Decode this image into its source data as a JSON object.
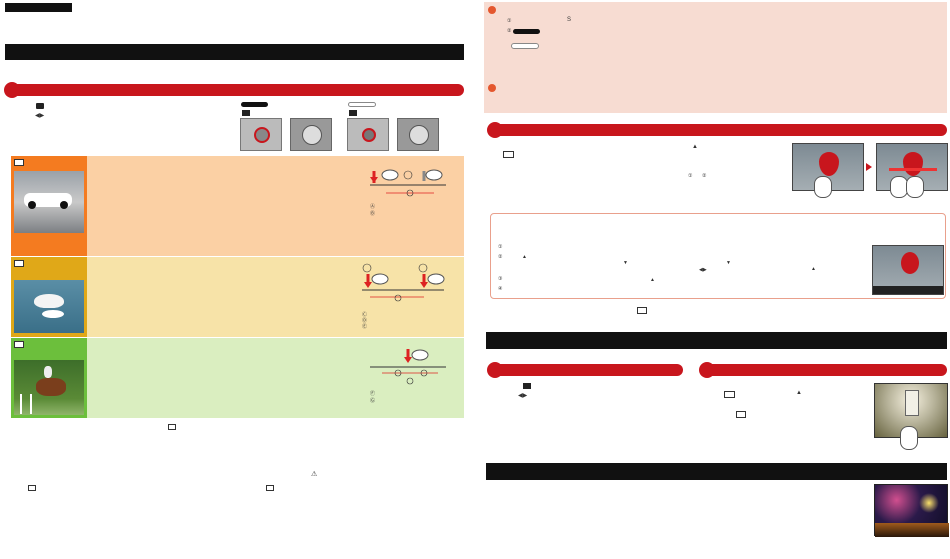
{
  "glyphs": {
    "arrow_lr": "◀▶",
    "arrow_up": "▲",
    "arrow_down": "▼",
    "warning": "⚠",
    "letter_s": "S",
    "circle_1": "①",
    "circle_2": "②",
    "circle_3": "③",
    "circle_4": "④",
    "circle_a": "Ⓐ",
    "circle_b": "Ⓑ",
    "circle_c": "Ⓒ",
    "circle_d": "Ⓓ",
    "circle_e": "Ⓔ",
    "circle_f": "Ⓕ",
    "circle_g": "Ⓖ"
  },
  "colors": {
    "accent_red": "#c8161d",
    "band_orange": "#fbd0a4",
    "band_yellow": "#f7e3a8",
    "band_green": "#daeec0",
    "note_pink": "#f7dcd2"
  },
  "icons": [
    "warning-icon",
    "scene-icon",
    "camera-body-icon",
    "dial-icon",
    "touch-hand-icon",
    "bird-thumb",
    "car-thumb",
    "horse-thumb",
    "balloon-thumb",
    "lantern-thumb",
    "fireworks-thumb"
  ]
}
